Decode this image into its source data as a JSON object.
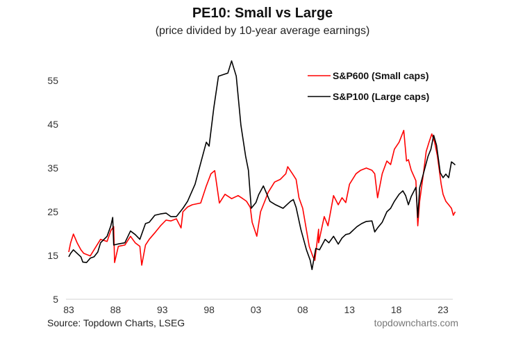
{
  "chart_data": {
    "type": "line",
    "title": "PE10: Small vs Large",
    "subtitle": "(price divided by 10-year average earnings)",
    "xlabel": "",
    "ylabel": "",
    "xlim": [
      1983,
      2024
    ],
    "ylim": [
      5,
      60
    ],
    "y_ticks": [
      5,
      15,
      25,
      35,
      45,
      55
    ],
    "x_ticks": [
      {
        "year": 1983,
        "label": "83"
      },
      {
        "year": 1988,
        "label": "88"
      },
      {
        "year": 1993,
        "label": "93"
      },
      {
        "year": 1998,
        "label": "98"
      },
      {
        "year": 2003,
        "label": "03"
      },
      {
        "year": 2008,
        "label": "08"
      },
      {
        "year": 2013,
        "label": "13"
      },
      {
        "year": 2018,
        "label": "18"
      },
      {
        "year": 2023,
        "label": "23"
      }
    ],
    "grid": false,
    "legend_position": "top-right",
    "source": "Source: Topdown Charts, LSEG",
    "brand": "topdowncharts.com",
    "series": [
      {
        "name": "S&P600 (Small caps)",
        "color": "#ff0000",
        "points": [
          [
            1983.0,
            15.8
          ],
          [
            1983.2,
            17.9
          ],
          [
            1983.5,
            19.9
          ],
          [
            1983.9,
            17.9
          ],
          [
            1984.3,
            16.3
          ],
          [
            1984.6,
            15.5
          ],
          [
            1985.3,
            14.9
          ],
          [
            1985.7,
            16.3
          ],
          [
            1986.4,
            18.7
          ],
          [
            1987.1,
            18.2
          ],
          [
            1987.5,
            20.7
          ],
          [
            1987.8,
            21.6
          ],
          [
            1987.9,
            13.4
          ],
          [
            1988.3,
            17.1
          ],
          [
            1989.0,
            17.4
          ],
          [
            1989.6,
            19.4
          ],
          [
            1990.1,
            17.9
          ],
          [
            1990.6,
            17.1
          ],
          [
            1990.8,
            12.8
          ],
          [
            1991.2,
            17.4
          ],
          [
            1991.6,
            18.7
          ],
          [
            1992.2,
            20.2
          ],
          [
            1992.8,
            21.8
          ],
          [
            1993.4,
            23.1
          ],
          [
            1993.9,
            22.9
          ],
          [
            1994.5,
            23.4
          ],
          [
            1995.0,
            21.3
          ],
          [
            1995.2,
            25.0
          ],
          [
            1995.7,
            26.1
          ],
          [
            1996.2,
            26.6
          ],
          [
            1997.1,
            27.0
          ],
          [
            1997.7,
            30.9
          ],
          [
            1998.2,
            33.7
          ],
          [
            1998.6,
            34.4
          ],
          [
            1999.1,
            27.0
          ],
          [
            1999.7,
            29.0
          ],
          [
            2000.4,
            28.0
          ],
          [
            2001.1,
            28.7
          ],
          [
            2001.6,
            28.0
          ],
          [
            2002.0,
            27.4
          ],
          [
            2002.4,
            26.0
          ],
          [
            2002.6,
            22.6
          ],
          [
            2003.1,
            19.4
          ],
          [
            2003.5,
            25.0
          ],
          [
            2004.0,
            27.7
          ],
          [
            2004.3,
            29.4
          ],
          [
            2005.0,
            31.8
          ],
          [
            2005.6,
            32.4
          ],
          [
            2006.2,
            33.7
          ],
          [
            2006.4,
            35.3
          ],
          [
            2006.9,
            33.7
          ],
          [
            2007.3,
            32.4
          ],
          [
            2007.6,
            28.2
          ],
          [
            2008.0,
            25.8
          ],
          [
            2008.7,
            17.1
          ],
          [
            2009.1,
            14.7
          ],
          [
            2009.3,
            13.9
          ],
          [
            2009.7,
            21.0
          ],
          [
            2009.7,
            17.9
          ],
          [
            2010.3,
            23.9
          ],
          [
            2010.7,
            21.8
          ],
          [
            2011.3,
            28.7
          ],
          [
            2011.8,
            26.6
          ],
          [
            2012.2,
            28.2
          ],
          [
            2012.6,
            27.1
          ],
          [
            2013.0,
            31.3
          ],
          [
            2013.7,
            33.7
          ],
          [
            2014.2,
            34.5
          ],
          [
            2014.8,
            35.0
          ],
          [
            2015.4,
            34.5
          ],
          [
            2015.7,
            33.7
          ],
          [
            2016.0,
            28.2
          ],
          [
            2016.5,
            33.7
          ],
          [
            2017.0,
            36.6
          ],
          [
            2017.4,
            35.8
          ],
          [
            2017.8,
            39.3
          ],
          [
            2018.3,
            40.9
          ],
          [
            2018.8,
            43.6
          ],
          [
            2019.1,
            36.6
          ],
          [
            2019.3,
            36.9
          ],
          [
            2019.6,
            34.5
          ],
          [
            2020.1,
            32.1
          ],
          [
            2020.3,
            21.8
          ],
          [
            2020.5,
            27.4
          ],
          [
            2020.9,
            33.7
          ],
          [
            2021.2,
            38.8
          ],
          [
            2021.5,
            40.9
          ],
          [
            2021.8,
            42.8
          ],
          [
            2022.1,
            40.9
          ],
          [
            2022.4,
            37.7
          ],
          [
            2022.8,
            31.3
          ],
          [
            2023.0,
            29.0
          ],
          [
            2023.3,
            27.4
          ],
          [
            2023.6,
            26.6
          ],
          [
            2023.9,
            25.8
          ],
          [
            2024.1,
            24.2
          ],
          [
            2024.3,
            25.0
          ]
        ]
      },
      {
        "name": "S&P100 (Large caps)",
        "color": "#000000",
        "points": [
          [
            1983.0,
            14.7
          ],
          [
            1983.2,
            15.5
          ],
          [
            1983.5,
            16.3
          ],
          [
            1983.9,
            15.5
          ],
          [
            1984.3,
            14.7
          ],
          [
            1984.5,
            13.5
          ],
          [
            1984.9,
            13.4
          ],
          [
            1985.3,
            14.4
          ],
          [
            1985.7,
            14.7
          ],
          [
            1986.1,
            15.8
          ],
          [
            1986.4,
            17.9
          ],
          [
            1987.1,
            19.4
          ],
          [
            1987.5,
            21.8
          ],
          [
            1987.7,
            23.7
          ],
          [
            1987.8,
            17.4
          ],
          [
            1988.2,
            17.6
          ],
          [
            1989.0,
            17.9
          ],
          [
            1989.6,
            20.6
          ],
          [
            1990.1,
            19.8
          ],
          [
            1990.6,
            18.7
          ],
          [
            1991.2,
            22.3
          ],
          [
            1991.6,
            22.6
          ],
          [
            1992.2,
            24.2
          ],
          [
            1992.8,
            24.5
          ],
          [
            1993.4,
            24.7
          ],
          [
            1993.9,
            23.9
          ],
          [
            1994.5,
            23.9
          ],
          [
            1995.2,
            25.8
          ],
          [
            1995.7,
            27.4
          ],
          [
            1996.5,
            31.3
          ],
          [
            1997.4,
            38.5
          ],
          [
            1997.7,
            40.9
          ],
          [
            1998.0,
            40.0
          ],
          [
            1998.5,
            48.8
          ],
          [
            1999.0,
            56.0
          ],
          [
            2000.0,
            56.7
          ],
          [
            2000.4,
            59.5
          ],
          [
            2000.9,
            56.0
          ],
          [
            2001.4,
            44.8
          ],
          [
            2001.9,
            37.7
          ],
          [
            2002.2,
            34.5
          ],
          [
            2002.5,
            25.8
          ],
          [
            2003.0,
            27.1
          ],
          [
            2003.3,
            28.9
          ],
          [
            2003.8,
            30.9
          ],
          [
            2004.5,
            27.4
          ],
          [
            2005.1,
            26.6
          ],
          [
            2005.9,
            25.8
          ],
          [
            2006.3,
            26.6
          ],
          [
            2006.7,
            27.4
          ],
          [
            2007.0,
            27.8
          ],
          [
            2007.3,
            26.0
          ],
          [
            2007.8,
            21.0
          ],
          [
            2008.4,
            16.3
          ],
          [
            2008.8,
            13.9
          ],
          [
            2009.0,
            11.8
          ],
          [
            2009.4,
            16.6
          ],
          [
            2009.8,
            16.3
          ],
          [
            2010.4,
            18.7
          ],
          [
            2010.8,
            17.9
          ],
          [
            2011.3,
            19.4
          ],
          [
            2011.8,
            17.6
          ],
          [
            2012.2,
            19.0
          ],
          [
            2012.6,
            19.8
          ],
          [
            2013.0,
            20.0
          ],
          [
            2013.8,
            21.6
          ],
          [
            2014.3,
            22.3
          ],
          [
            2014.8,
            22.8
          ],
          [
            2015.4,
            22.9
          ],
          [
            2015.7,
            20.4
          ],
          [
            2016.0,
            21.3
          ],
          [
            2016.5,
            22.6
          ],
          [
            2017.0,
            25.0
          ],
          [
            2017.4,
            25.8
          ],
          [
            2017.8,
            27.4
          ],
          [
            2018.3,
            29.0
          ],
          [
            2018.7,
            29.8
          ],
          [
            2019.0,
            28.7
          ],
          [
            2019.3,
            26.6
          ],
          [
            2019.6,
            28.5
          ],
          [
            2020.1,
            30.6
          ],
          [
            2020.3,
            23.7
          ],
          [
            2020.5,
            30.5
          ],
          [
            2020.9,
            33.7
          ],
          [
            2021.4,
            37.7
          ],
          [
            2021.7,
            39.3
          ],
          [
            2022.0,
            42.5
          ],
          [
            2022.3,
            40.2
          ],
          [
            2022.7,
            33.9
          ],
          [
            2023.0,
            32.8
          ],
          [
            2023.3,
            33.6
          ],
          [
            2023.6,
            32.8
          ],
          [
            2023.9,
            36.4
          ],
          [
            2024.1,
            36.1
          ],
          [
            2024.3,
            35.7
          ]
        ]
      }
    ]
  }
}
